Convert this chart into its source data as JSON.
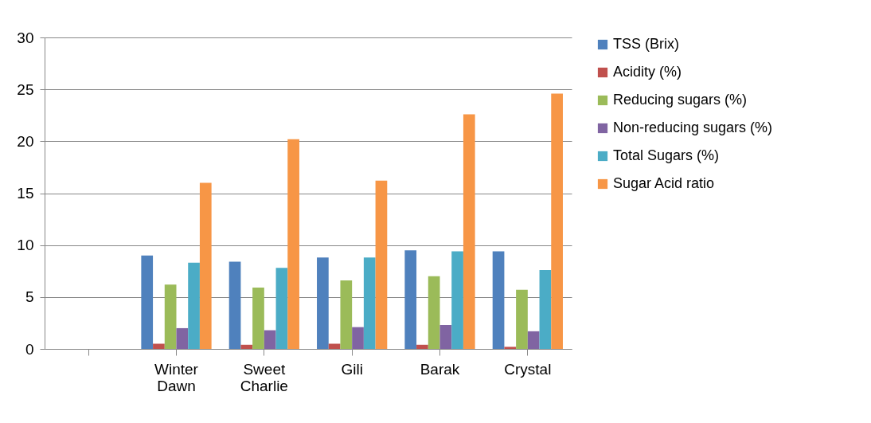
{
  "chart_data": {
    "type": "bar",
    "categories": [
      null,
      "Winter Dawn",
      "Sweet Charlie",
      "Gili",
      "Barak",
      "Crystal"
    ],
    "series": [
      {
        "name": "TSS  (Brix)",
        "color": "#4f81bd",
        "values": [
          null,
          9.0,
          8.4,
          8.8,
          9.5,
          9.4
        ]
      },
      {
        "name": "Acidity (%)",
        "color": "#c0504d",
        "values": [
          null,
          0.5,
          0.4,
          0.5,
          0.4,
          0.2
        ]
      },
      {
        "name": "Reducing sugars (%)",
        "color": "#9bbb59",
        "values": [
          null,
          6.2,
          5.9,
          6.6,
          7.0,
          5.7
        ]
      },
      {
        "name": "Non-reducing sugars (%)",
        "color": "#8064a2",
        "values": [
          null,
          2.0,
          1.8,
          2.1,
          2.3,
          1.7
        ]
      },
      {
        "name": "Total Sugars (%)",
        "color": "#4bacc6",
        "values": [
          null,
          8.3,
          7.8,
          8.8,
          9.4,
          7.6
        ]
      },
      {
        "name": "Sugar Acid ratio",
        "color": "#f79646",
        "values": [
          null,
          16.0,
          20.2,
          16.2,
          22.6,
          24.6
        ]
      }
    ],
    "ylim": [
      0,
      30
    ],
    "yticks": [
      0,
      5,
      10,
      15,
      20,
      25,
      30
    ],
    "grid": "y",
    "legend": "right"
  }
}
